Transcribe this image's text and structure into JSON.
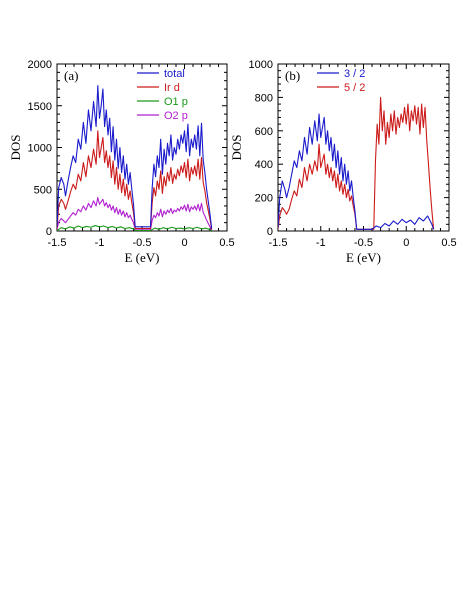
{
  "chart_data": [
    {
      "type": "line",
      "panel_label": "(a)",
      "xlabel": "E (eV)",
      "ylabel": "DOS",
      "xlim": [
        -1.5,
        0.5
      ],
      "ylim": [
        0,
        2000
      ],
      "x_ticks": [
        "-1.5",
        "-1",
        "-0.5",
        "0",
        "0.5"
      ],
      "x_tick_values": [
        -1.5,
        -1,
        -0.5,
        0,
        0.5
      ],
      "y_ticks": [
        "0",
        "500",
        "1000",
        "1500",
        "2000"
      ],
      "y_tick_values": [
        0,
        500,
        1000,
        1500,
        2000
      ],
      "legend_position": "top-center",
      "series": [
        {
          "name": "total",
          "color": "#1a1acc",
          "x": [
            -1.5,
            -1.48,
            -1.45,
            -1.42,
            -1.4,
            -1.37,
            -1.34,
            -1.31,
            -1.28,
            -1.25,
            -1.22,
            -1.19,
            -1.16,
            -1.13,
            -1.1,
            -1.07,
            -1.04,
            -1.02,
            -1,
            -0.98,
            -0.96,
            -0.94,
            -0.92,
            -0.9,
            -0.88,
            -0.86,
            -0.84,
            -0.82,
            -0.8,
            -0.78,
            -0.76,
            -0.74,
            -0.72,
            -0.7,
            -0.68,
            -0.66,
            -0.64,
            -0.62,
            -0.6,
            -0.58,
            -0.4,
            -0.38,
            -0.36,
            -0.34,
            -0.32,
            -0.3,
            -0.28,
            -0.26,
            -0.24,
            -0.22,
            -0.2,
            -0.18,
            -0.16,
            -0.14,
            -0.12,
            -0.1,
            -0.08,
            -0.06,
            -0.04,
            -0.02,
            0,
            0.02,
            0.04,
            0.06,
            0.08,
            0.1,
            0.12,
            0.14,
            0.16,
            0.18,
            0.2,
            0.22,
            0.24,
            0.26,
            0.28,
            0.3,
            0.32
          ],
          "y": [
            50,
            520,
            640,
            560,
            420,
            600,
            760,
            900,
            820,
            1100,
            980,
            1300,
            1050,
            1450,
            1200,
            1550,
            1250,
            1740,
            1350,
            1500,
            1700,
            1250,
            1450,
            1150,
            1350,
            950,
            1250,
            850,
            1100,
            750,
            1000,
            700,
            900,
            620,
            800,
            560,
            700,
            500,
            320,
            50,
            50,
            520,
            800,
            650,
            900,
            760,
            1100,
            680,
            980,
            800,
            1050,
            900,
            1150,
            850,
            1000,
            920,
            1100,
            980,
            1150,
            1050,
            1200,
            950,
            1280,
            900,
            1100,
            1000,
            1150,
            980,
            1260,
            900,
            1290,
            850,
            700,
            500,
            350,
            200,
            30
          ]
        },
        {
          "name": "Ir d",
          "color": "#cc1a1a",
          "x": [
            -1.5,
            -1.48,
            -1.45,
            -1.42,
            -1.4,
            -1.37,
            -1.34,
            -1.31,
            -1.28,
            -1.25,
            -1.22,
            -1.19,
            -1.16,
            -1.13,
            -1.1,
            -1.07,
            -1.04,
            -1.02,
            -1,
            -0.98,
            -0.96,
            -0.94,
            -0.92,
            -0.9,
            -0.88,
            -0.86,
            -0.84,
            -0.82,
            -0.8,
            -0.78,
            -0.76,
            -0.74,
            -0.72,
            -0.7,
            -0.68,
            -0.66,
            -0.64,
            -0.62,
            -0.6,
            -0.58,
            -0.4,
            -0.38,
            -0.36,
            -0.34,
            -0.32,
            -0.3,
            -0.28,
            -0.26,
            -0.24,
            -0.22,
            -0.2,
            -0.18,
            -0.16,
            -0.14,
            -0.12,
            -0.1,
            -0.08,
            -0.06,
            -0.04,
            -0.02,
            0,
            0.02,
            0.04,
            0.06,
            0.08,
            0.1,
            0.12,
            0.14,
            0.16,
            0.18,
            0.2,
            0.22,
            0.24,
            0.26,
            0.28,
            0.3,
            0.32
          ],
          "y": [
            30,
            300,
            380,
            330,
            260,
            360,
            470,
            560,
            500,
            680,
            600,
            820,
            650,
            900,
            760,
            980,
            800,
            1200,
            880,
            1000,
            1120,
            820,
            960,
            760,
            900,
            640,
            840,
            560,
            760,
            500,
            680,
            460,
            620,
            420,
            560,
            380,
            480,
            340,
            220,
            30,
            30,
            340,
            520,
            420,
            600,
            500,
            720,
            450,
            650,
            540,
            700,
            600,
            760,
            570,
            680,
            620,
            740,
            660,
            780,
            700,
            820,
            640,
            860,
            600,
            760,
            680,
            780,
            660,
            860,
            620,
            880,
            580,
            480,
            340,
            240,
            140,
            20
          ]
        },
        {
          "name": "O1 p",
          "color": "#1a9a1a",
          "x": [
            -1.5,
            -1.45,
            -1.4,
            -1.35,
            -1.3,
            -1.25,
            -1.2,
            -1.15,
            -1.1,
            -1.05,
            -1,
            -0.95,
            -0.9,
            -0.85,
            -0.8,
            -0.75,
            -0.7,
            -0.65,
            -0.6,
            -0.58,
            -0.4,
            -0.35,
            -0.3,
            -0.25,
            -0.2,
            -0.15,
            -0.1,
            -0.05,
            0,
            0.05,
            0.1,
            0.15,
            0.2,
            0.25,
            0.3,
            0.32
          ],
          "y": [
            5,
            40,
            25,
            50,
            35,
            60,
            40,
            55,
            45,
            65,
            50,
            60,
            40,
            55,
            35,
            50,
            30,
            40,
            25,
            5,
            5,
            35,
            20,
            40,
            25,
            45,
            30,
            35,
            25,
            40,
            30,
            45,
            25,
            35,
            15,
            5
          ]
        },
        {
          "name": "O2 p",
          "color": "#b020d0",
          "x": [
            -1.5,
            -1.48,
            -1.45,
            -1.42,
            -1.4,
            -1.37,
            -1.34,
            -1.31,
            -1.28,
            -1.25,
            -1.22,
            -1.19,
            -1.16,
            -1.13,
            -1.1,
            -1.07,
            -1.04,
            -1.02,
            -1,
            -0.98,
            -0.96,
            -0.94,
            -0.92,
            -0.9,
            -0.88,
            -0.86,
            -0.84,
            -0.82,
            -0.8,
            -0.78,
            -0.76,
            -0.74,
            -0.72,
            -0.7,
            -0.68,
            -0.66,
            -0.64,
            -0.62,
            -0.6,
            -0.58,
            -0.4,
            -0.38,
            -0.36,
            -0.34,
            -0.32,
            -0.3,
            -0.28,
            -0.26,
            -0.24,
            -0.22,
            -0.2,
            -0.18,
            -0.16,
            -0.14,
            -0.12,
            -0.1,
            -0.08,
            -0.06,
            -0.04,
            -0.02,
            0,
            0.02,
            0.04,
            0.06,
            0.08,
            0.1,
            0.12,
            0.14,
            0.16,
            0.18,
            0.2,
            0.22,
            0.24,
            0.26,
            0.28,
            0.3,
            0.32
          ],
          "y": [
            15,
            110,
            150,
            120,
            100,
            140,
            180,
            220,
            190,
            260,
            230,
            300,
            250,
            330,
            280,
            360,
            300,
            400,
            320,
            350,
            380,
            300,
            340,
            280,
            320,
            250,
            300,
            220,
            280,
            200,
            260,
            190,
            240,
            170,
            220,
            160,
            190,
            140,
            100,
            15,
            15,
            130,
            190,
            160,
            220,
            180,
            260,
            170,
            240,
            200,
            250,
            220,
            270,
            210,
            250,
            230,
            270,
            240,
            290,
            260,
            310,
            240,
            320,
            230,
            290,
            260,
            300,
            250,
            320,
            240,
            330,
            220,
            180,
            130,
            90,
            50,
            10
          ]
        }
      ]
    },
    {
      "type": "line",
      "panel_label": "(b)",
      "xlabel": "E (eV)",
      "ylabel": "DOS",
      "xlim": [
        -1.5,
        0.5
      ],
      "ylim": [
        0,
        1000
      ],
      "x_ticks": [
        "-1.5",
        "-1",
        "-0.5",
        "0",
        "0.5"
      ],
      "x_tick_values": [
        -1.5,
        -1,
        -0.5,
        0,
        0.5
      ],
      "y_ticks": [
        "0",
        "200",
        "400",
        "600",
        "800",
        "1000"
      ],
      "y_tick_values": [
        0,
        200,
        400,
        600,
        800,
        1000
      ],
      "legend_position": "top-center",
      "series": [
        {
          "name": "3 / 2",
          "color": "#1a1acc",
          "x": [
            -1.5,
            -1.48,
            -1.45,
            -1.42,
            -1.4,
            -1.37,
            -1.34,
            -1.31,
            -1.28,
            -1.25,
            -1.22,
            -1.19,
            -1.16,
            -1.13,
            -1.1,
            -1.07,
            -1.04,
            -1.02,
            -1,
            -0.98,
            -0.96,
            -0.94,
            -0.92,
            -0.9,
            -0.88,
            -0.86,
            -0.84,
            -0.82,
            -0.8,
            -0.78,
            -0.76,
            -0.74,
            -0.72,
            -0.7,
            -0.68,
            -0.66,
            -0.64,
            -0.62,
            -0.6,
            -0.58,
            -0.4,
            -0.35,
            -0.3,
            -0.25,
            -0.2,
            -0.15,
            -0.1,
            -0.05,
            0,
            0.05,
            0.1,
            0.15,
            0.2,
            0.25,
            0.3,
            0.32
          ],
          "y": [
            20,
            200,
            300,
            250,
            200,
            260,
            340,
            420,
            380,
            480,
            420,
            560,
            460,
            620,
            520,
            660,
            540,
            700,
            560,
            620,
            680,
            520,
            600,
            480,
            560,
            420,
            520,
            380,
            480,
            340,
            440,
            300,
            400,
            280,
            360,
            240,
            300,
            200,
            120,
            10,
            10,
            30,
            20,
            45,
            30,
            60,
            40,
            70,
            50,
            65,
            40,
            80,
            60,
            90,
            40,
            10
          ]
        },
        {
          "name": "5 / 2",
          "color": "#cc1a1a",
          "x": [
            -1.5,
            -1.48,
            -1.45,
            -1.42,
            -1.4,
            -1.37,
            -1.34,
            -1.31,
            -1.28,
            -1.25,
            -1.22,
            -1.19,
            -1.16,
            -1.13,
            -1.1,
            -1.07,
            -1.04,
            -1.02,
            -1,
            -0.98,
            -0.96,
            -0.94,
            -0.92,
            -0.9,
            -0.88,
            -0.86,
            -0.84,
            -0.82,
            -0.8,
            -0.78,
            -0.76,
            -0.74,
            -0.72,
            -0.7,
            -0.68,
            -0.66,
            -0.64,
            -0.62,
            -0.6,
            -0.58,
            -0.38,
            -0.36,
            -0.34,
            -0.32,
            -0.3,
            -0.28,
            -0.26,
            -0.24,
            -0.22,
            -0.2,
            -0.18,
            -0.16,
            -0.14,
            -0.12,
            -0.1,
            -0.08,
            -0.06,
            -0.04,
            -0.02,
            0,
            0.02,
            0.04,
            0.06,
            0.08,
            0.1,
            0.12,
            0.14,
            0.16,
            0.18,
            0.2,
            0.22,
            0.24,
            0.26,
            0.28,
            0.3,
            0.32
          ],
          "y": [
            10,
            90,
            140,
            120,
            100,
            130,
            190,
            240,
            210,
            310,
            260,
            380,
            300,
            400,
            340,
            420,
            360,
            520,
            380,
            420,
            460,
            340,
            400,
            320,
            380,
            300,
            360,
            260,
            340,
            240,
            300,
            220,
            280,
            200,
            250,
            180,
            210,
            150,
            100,
            10,
            10,
            420,
            640,
            520,
            800,
            600,
            720,
            520,
            650,
            560,
            700,
            600,
            720,
            580,
            680,
            620,
            700,
            650,
            740,
            640,
            760,
            600,
            720,
            660,
            750,
            640,
            740,
            580,
            760,
            620,
            740,
            540,
            400,
            250,
            120,
            10
          ]
        }
      ]
    }
  ]
}
